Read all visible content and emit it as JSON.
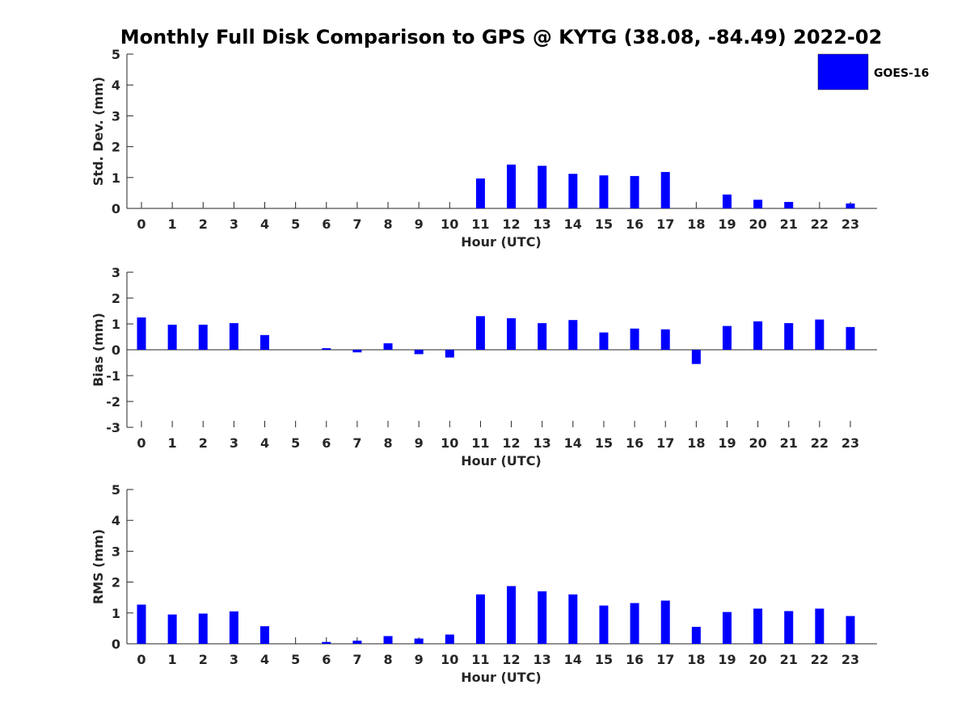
{
  "title": "Monthly Full Disk Comparison to GPS @ KYTG (38.08, -84.49) 2022-02",
  "legend": {
    "label": "GOES-16",
    "color": "#0000ff",
    "placement": "top-right"
  },
  "bar_color": "#0000ff",
  "chart_data": [
    {
      "type": "bar",
      "title": "",
      "xlabel": "Hour (UTC)",
      "ylabel": "Std. Dev. (mm)",
      "ylim": [
        0,
        5
      ],
      "yticks": [
        0,
        1,
        2,
        3,
        4,
        5
      ],
      "categories": [
        "0",
        "1",
        "2",
        "3",
        "4",
        "5",
        "6",
        "7",
        "8",
        "9",
        "10",
        "11",
        "12",
        "13",
        "14",
        "15",
        "16",
        "17",
        "18",
        "19",
        "20",
        "21",
        "22",
        "23"
      ],
      "series": [
        {
          "name": "GOES-16",
          "values": [
            0,
            0,
            0,
            0,
            0,
            0,
            0,
            0,
            0,
            0,
            0,
            0.97,
            1.42,
            1.38,
            1.12,
            1.07,
            1.05,
            1.18,
            0,
            0.45,
            0.28,
            0.21,
            0,
            0.16
          ]
        }
      ]
    },
    {
      "type": "bar",
      "title": "",
      "xlabel": "Hour (UTC)",
      "ylabel": "Bias (mm)",
      "ylim": [
        -3,
        3
      ],
      "yticks": [
        -3,
        -2,
        -1,
        0,
        1,
        2,
        3
      ],
      "categories": [
        "0",
        "1",
        "2",
        "3",
        "4",
        "5",
        "6",
        "7",
        "8",
        "9",
        "10",
        "11",
        "12",
        "13",
        "14",
        "15",
        "16",
        "17",
        "18",
        "19",
        "20",
        "21",
        "22",
        "23"
      ],
      "series": [
        {
          "name": "GOES-16",
          "values": [
            1.25,
            0.97,
            0.97,
            1.03,
            0.57,
            0,
            0.06,
            -0.1,
            0.25,
            -0.17,
            -0.3,
            1.3,
            1.22,
            1.03,
            1.15,
            0.67,
            0.82,
            0.79,
            -0.55,
            0.92,
            1.1,
            1.03,
            1.17,
            0.88
          ]
        }
      ]
    },
    {
      "type": "bar",
      "title": "",
      "xlabel": "Hour (UTC)",
      "ylabel": "RMS (mm)",
      "ylim": [
        0,
        5
      ],
      "yticks": [
        0,
        1,
        2,
        3,
        4,
        5
      ],
      "categories": [
        "0",
        "1",
        "2",
        "3",
        "4",
        "5",
        "6",
        "7",
        "8",
        "9",
        "10",
        "11",
        "12",
        "13",
        "14",
        "15",
        "16",
        "17",
        "18",
        "19",
        "20",
        "21",
        "22",
        "23"
      ],
      "series": [
        {
          "name": "GOES-16",
          "values": [
            1.27,
            0.95,
            0.98,
            1.05,
            0.57,
            0,
            0.06,
            0.1,
            0.25,
            0.17,
            0.3,
            1.6,
            1.87,
            1.7,
            1.6,
            1.24,
            1.32,
            1.4,
            0.55,
            1.03,
            1.14,
            1.06,
            1.14,
            0.9
          ]
        }
      ]
    }
  ]
}
